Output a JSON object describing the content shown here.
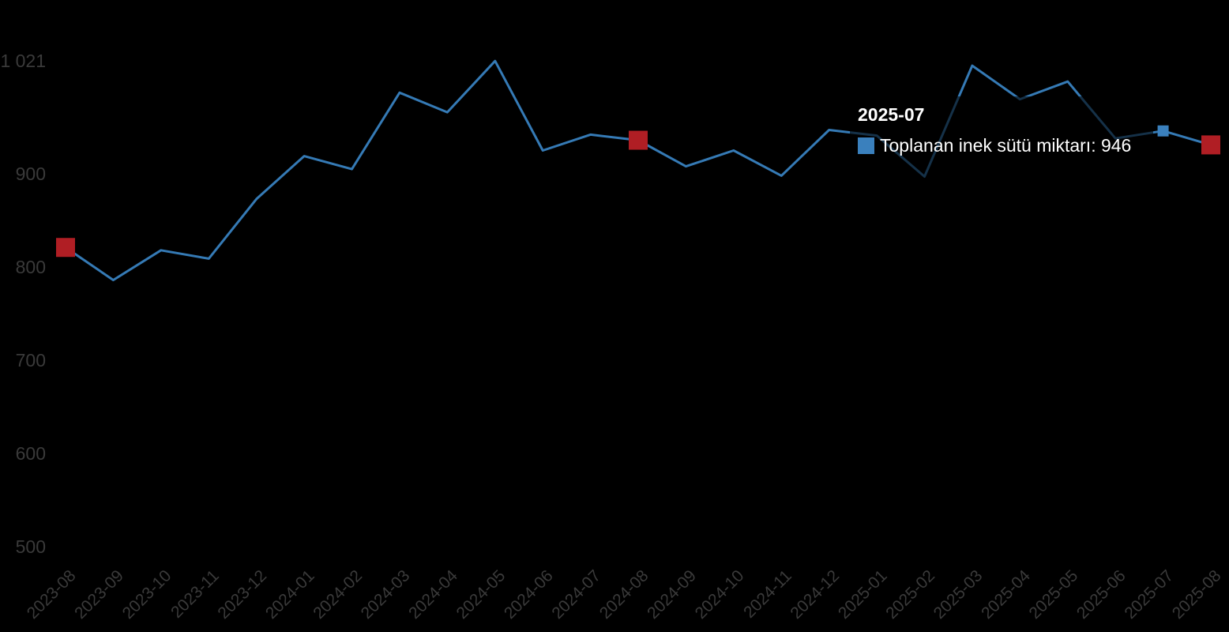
{
  "chart_data": {
    "type": "line",
    "title": "",
    "xlabel": "",
    "ylabel": "",
    "x": [
      "2023-08",
      "2023-09",
      "2023-10",
      "2023-11",
      "2023-12",
      "2024-01",
      "2024-02",
      "2024-03",
      "2024-04",
      "2024-05",
      "2024-06",
      "2024-07",
      "2024-08",
      "2024-09",
      "2024-10",
      "2024-11",
      "2024-12",
      "2025-01",
      "2025-02",
      "2025-03",
      "2025-04",
      "2025-05",
      "2025-06",
      "2025-07",
      "2025-08"
    ],
    "series": [
      {
        "name": "Toplanan inek sütü miktarı",
        "values": [
          821,
          786,
          818,
          809,
          873,
          919,
          905,
          987,
          966,
          1021,
          925,
          942,
          936,
          908,
          925,
          898,
          947,
          941,
          897,
          1016,
          980,
          999,
          938,
          946,
          931
        ]
      }
    ],
    "ylim": [
      500,
      1021
    ],
    "yticks": [
      {
        "v": 500,
        "label": "500"
      },
      {
        "v": 600,
        "label": "600"
      },
      {
        "v": 700,
        "label": "700"
      },
      {
        "v": 800,
        "label": "800"
      },
      {
        "v": 900,
        "label": "900"
      },
      {
        "v": 1021,
        "label": "1 021"
      }
    ],
    "grid": false,
    "legend_position": "tooltip-only",
    "highlighted_x": [
      "2023-08",
      "2024-08",
      "2025-08"
    ],
    "hovered_x": "2025-07",
    "colors": {
      "background": "#000000",
      "line": "#357ab5",
      "highlight_marker": "#b01e24",
      "hover_marker": "#3a80bd",
      "axis_text": "#3a3a3a",
      "tooltip_text": "#ffffff"
    }
  },
  "tooltip": {
    "title": "2025-07",
    "series_label": "Toplanan inek sütü miktarı",
    "value": "946",
    "text": "Toplanan inek sütü miktarı: 946"
  }
}
